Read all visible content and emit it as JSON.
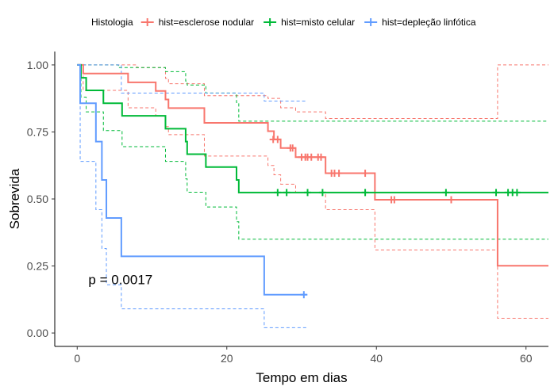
{
  "chart_data": {
    "type": "line",
    "subtype": "kaplan-meier",
    "xlabel": "Tempo em dias",
    "ylabel": "Sobrevida",
    "xlim": [
      -3,
      63
    ],
    "ylim": [
      -0.05,
      1.05
    ],
    "x_ticks": [
      0,
      20,
      40,
      60
    ],
    "y_ticks": [
      0.0,
      0.25,
      0.5,
      0.75,
      1.0
    ],
    "x_tick_labels": [
      "0",
      "20",
      "40",
      "60"
    ],
    "y_tick_labels": [
      "0.00",
      "0.25",
      "0.50",
      "0.75",
      "1.00"
    ],
    "grid": false,
    "legend_position": "top",
    "legend_title": "Histologia",
    "annotation": "p = 0.0017",
    "annotation_at": [
      1.5,
      0.2
    ],
    "series": [
      {
        "name": "hist=esclerose nodular",
        "color": "#F8766D",
        "steps": [
          [
            0,
            1.0
          ],
          [
            0.8,
            0.968
          ],
          [
            6.8,
            0.935
          ],
          [
            10.5,
            0.903
          ],
          [
            11.8,
            0.871
          ],
          [
            12.2,
            0.839
          ],
          [
            17.0,
            0.784
          ],
          [
            25.5,
            0.753
          ],
          [
            26.3,
            0.722
          ],
          [
            27.2,
            0.69
          ],
          [
            29.2,
            0.656
          ],
          [
            33.2,
            0.596
          ],
          [
            39.8,
            0.497
          ],
          [
            56.2,
            0.251
          ],
          [
            63,
            0.251
          ]
        ],
        "upper": [
          [
            0,
            1.0
          ],
          [
            0.8,
            1.0
          ],
          [
            8.0,
            0.99
          ],
          [
            11.8,
            0.95
          ],
          [
            12.2,
            0.93
          ],
          [
            17.0,
            0.885
          ],
          [
            25.5,
            0.875
          ],
          [
            27.2,
            0.84
          ],
          [
            29.2,
            0.825
          ],
          [
            33.2,
            0.8
          ],
          [
            39.8,
            0.8
          ],
          [
            56.2,
            1.0
          ],
          [
            63,
            1.0
          ]
        ],
        "lower": [
          [
            0,
            1.0
          ],
          [
            0.8,
            0.905
          ],
          [
            6.8,
            0.84
          ],
          [
            10.5,
            0.81
          ],
          [
            11.8,
            0.77
          ],
          [
            12.2,
            0.74
          ],
          [
            17.0,
            0.66
          ],
          [
            25.5,
            0.625
          ],
          [
            26.3,
            0.59
          ],
          [
            27.2,
            0.555
          ],
          [
            29.2,
            0.525
          ],
          [
            33.2,
            0.46
          ],
          [
            39.8,
            0.31
          ],
          [
            56.2,
            0.055
          ],
          [
            63,
            0.055
          ]
        ],
        "censored": [
          [
            26.2,
            0.722
          ],
          [
            26.8,
            0.722
          ],
          [
            28.5,
            0.69
          ],
          [
            28.8,
            0.69
          ],
          [
            30.0,
            0.656
          ],
          [
            30.5,
            0.656
          ],
          [
            30.8,
            0.656
          ],
          [
            31.3,
            0.656
          ],
          [
            32.2,
            0.656
          ],
          [
            32.6,
            0.656
          ],
          [
            34.0,
            0.596
          ],
          [
            34.4,
            0.596
          ],
          [
            35.0,
            0.596
          ],
          [
            38.5,
            0.596
          ],
          [
            42.0,
            0.497
          ],
          [
            42.4,
            0.497
          ],
          [
            50.0,
            0.497
          ]
        ]
      },
      {
        "name": "hist=misto celular",
        "color": "#00BA38",
        "steps": [
          [
            0,
            1.0
          ],
          [
            0.5,
            0.952
          ],
          [
            1.2,
            0.905
          ],
          [
            3.5,
            0.857
          ],
          [
            6.0,
            0.81
          ],
          [
            11.8,
            0.762
          ],
          [
            14.5,
            0.714
          ],
          [
            14.7,
            0.667
          ],
          [
            17.2,
            0.619
          ],
          [
            21.3,
            0.571
          ],
          [
            21.6,
            0.524
          ],
          [
            63,
            0.524
          ]
        ],
        "upper": [
          [
            0,
            1.0
          ],
          [
            1.2,
            1.0
          ],
          [
            5.5,
            0.99
          ],
          [
            11.8,
            0.975
          ],
          [
            14.5,
            0.94
          ],
          [
            14.7,
            0.925
          ],
          [
            17.2,
            0.895
          ],
          [
            21.3,
            0.86
          ],
          [
            21.6,
            0.79
          ],
          [
            63,
            0.79
          ]
        ],
        "lower": [
          [
            0,
            1.0
          ],
          [
            0.5,
            0.88
          ],
          [
            1.2,
            0.825
          ],
          [
            3.5,
            0.755
          ],
          [
            6.0,
            0.695
          ],
          [
            11.8,
            0.64
          ],
          [
            14.5,
            0.575
          ],
          [
            14.7,
            0.525
          ],
          [
            17.2,
            0.47
          ],
          [
            21.3,
            0.415
          ],
          [
            21.6,
            0.35
          ],
          [
            63,
            0.35
          ]
        ],
        "censored": [
          [
            26.8,
            0.524
          ],
          [
            28.0,
            0.524
          ],
          [
            30.8,
            0.524
          ],
          [
            32.8,
            0.524
          ],
          [
            38.5,
            0.524
          ],
          [
            49.3,
            0.524
          ],
          [
            56.0,
            0.524
          ],
          [
            57.6,
            0.524
          ],
          [
            58.2,
            0.524
          ],
          [
            58.8,
            0.524
          ]
        ]
      },
      {
        "name": "hist=depleção linfótica",
        "color": "#619CFF",
        "steps": [
          [
            0,
            1.0
          ],
          [
            0.4,
            0.857
          ],
          [
            2.5,
            0.714
          ],
          [
            3.3,
            0.571
          ],
          [
            3.9,
            0.429
          ],
          [
            5.9,
            0.286
          ],
          [
            25.0,
            0.143
          ],
          [
            30.7,
            0.143
          ]
        ],
        "upper": [
          [
            0,
            1.0
          ],
          [
            0.4,
            1.0
          ],
          [
            5.9,
            0.895
          ],
          [
            25.0,
            0.865
          ],
          [
            30.7,
            0.865
          ]
        ],
        "lower": [
          [
            0,
            1.0
          ],
          [
            0.4,
            0.64
          ],
          [
            2.5,
            0.46
          ],
          [
            3.3,
            0.315
          ],
          [
            3.9,
            0.18
          ],
          [
            5.9,
            0.09
          ],
          [
            25.0,
            0.02
          ],
          [
            30.7,
            0.02
          ]
        ],
        "censored": [
          [
            30.3,
            0.143
          ]
        ]
      }
    ]
  }
}
